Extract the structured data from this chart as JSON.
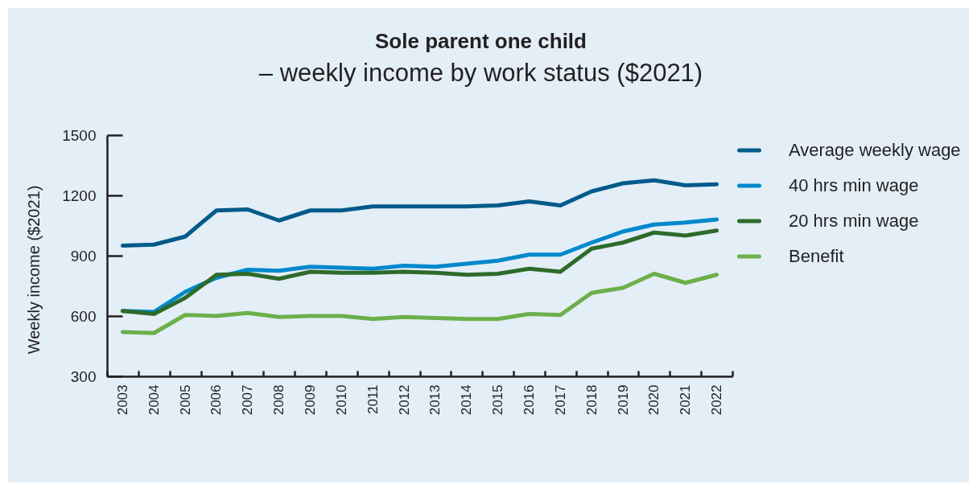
{
  "chart_data": {
    "type": "line",
    "title": "Sole parent one child",
    "subtitle": "– weekly income by work status ($2021)",
    "ylabel": "Weekly income ($2021)",
    "categories": [
      "2003",
      "2004",
      "2005",
      "2006",
      "2007",
      "2008",
      "2009",
      "2010",
      "2011",
      "2012",
      "2013",
      "2014",
      "2015",
      "2016",
      "2017",
      "2018",
      "2019",
      "2020",
      "2021",
      "2022"
    ],
    "series": [
      {
        "name": "Average weekly wage",
        "color": "#005b8a",
        "values": [
          950,
          955,
          995,
          1125,
          1130,
          1075,
          1125,
          1125,
          1145,
          1145,
          1145,
          1145,
          1150,
          1170,
          1150,
          1220,
          1260,
          1275,
          1250,
          1255
        ]
      },
      {
        "name": "40 hrs min wage",
        "color": "#0088cc",
        "values": [
          625,
          620,
          720,
          790,
          830,
          825,
          845,
          840,
          835,
          850,
          845,
          860,
          875,
          905,
          905,
          965,
          1020,
          1055,
          1065,
          1080
        ]
      },
      {
        "name": "20 hrs min wage",
        "color": "#2e6b2a",
        "values": [
          625,
          610,
          690,
          805,
          810,
          785,
          820,
          815,
          815,
          820,
          815,
          805,
          810,
          835,
          820,
          935,
          965,
          1015,
          1000,
          1025
        ]
      },
      {
        "name": "Benefit",
        "color": "#6bb04a",
        "values": [
          520,
          515,
          605,
          600,
          615,
          595,
          600,
          600,
          585,
          595,
          590,
          585,
          585,
          610,
          605,
          715,
          740,
          810,
          765,
          805
        ]
      }
    ],
    "ylim": [
      300,
      1500
    ],
    "yticks": [
      300,
      600,
      900,
      1200,
      1500
    ],
    "grid": false,
    "legend": "right",
    "line_style": "solid"
  }
}
